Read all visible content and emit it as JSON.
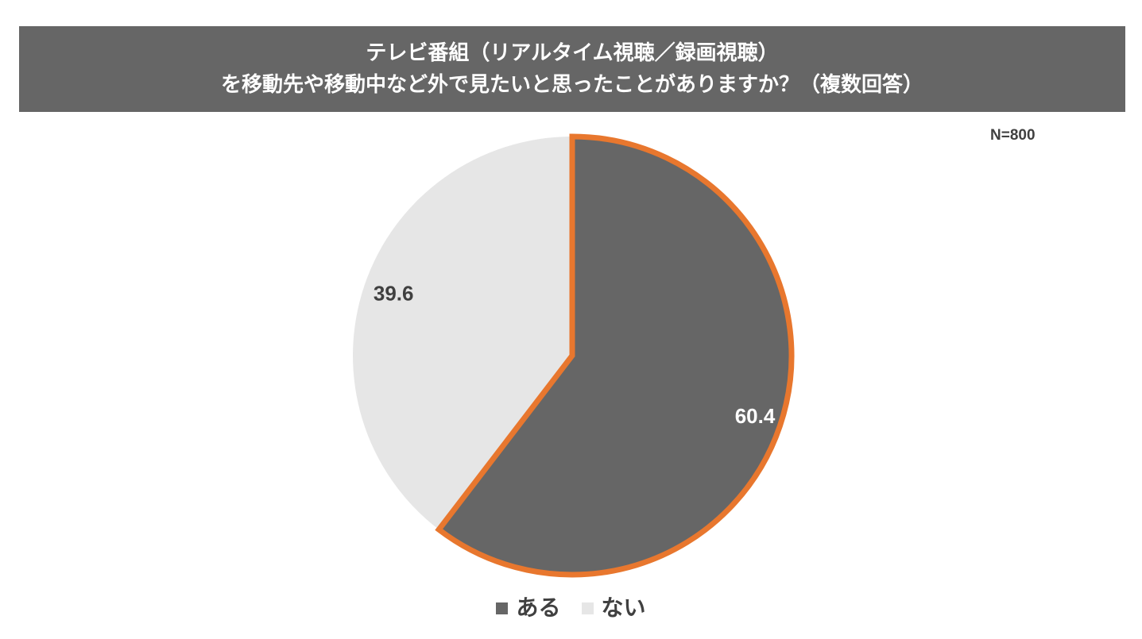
{
  "chart_data": {
    "type": "pie",
    "title_lines": [
      "テレビ番組（リアルタイム視聴／録画視聴）",
      "を移動先や移動中など外で見たいと思ったことがありますか？（複数回答）"
    ],
    "sample_size": "N=800",
    "slices": [
      {
        "label": "ある",
        "value": 60.4,
        "display": "60.4",
        "color": "#666666",
        "text_color": "#ffffff",
        "highlight": true
      },
      {
        "label": "ない",
        "value": 39.6,
        "display": "39.6",
        "color": "#e6e6e6",
        "text_color": "#404040",
        "highlight": false
      }
    ],
    "start_angle_deg": 0,
    "direction": "clockwise",
    "highlight_color": "#e8772e",
    "legend_position": "bottom-center"
  }
}
